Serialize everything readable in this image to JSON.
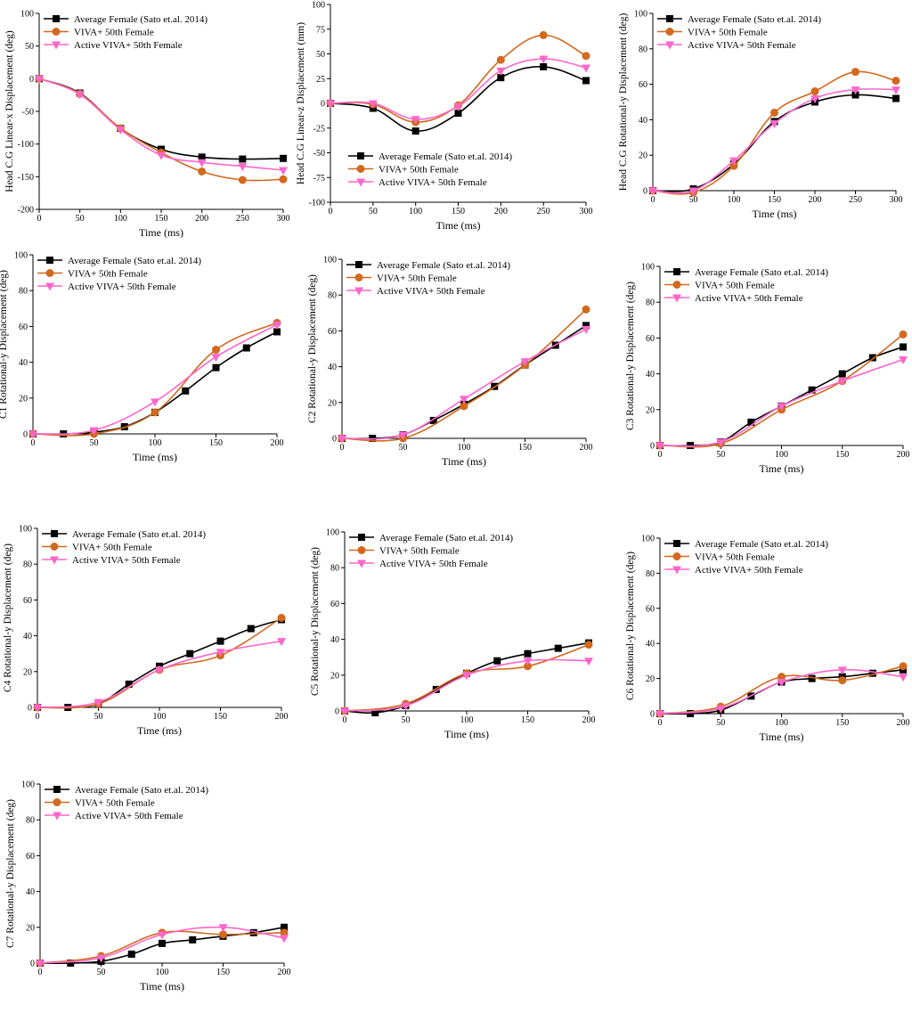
{
  "colors": {
    "average": "#000000",
    "viva": "#d2691e",
    "active": "#ff66cc"
  },
  "legend_labels": [
    "Average Female (Sato et.al. 2014)",
    "VIVA+ 50th Female",
    "Active VIVA+ 50th Female"
  ],
  "chart_data": [
    {
      "id": "head-x",
      "type": "line",
      "xlabel": "Time (ms)",
      "ylabel": "Head C.G Linear-x Displacement (deg)",
      "xlim": [
        0,
        300
      ],
      "ylim": [
        -200,
        100
      ],
      "xticks": [
        0,
        50,
        100,
        150,
        200,
        250,
        300
      ],
      "yticks": [
        -200,
        -150,
        -100,
        -50,
        0,
        50,
        100
      ],
      "legend_position": "top-left",
      "series": [
        {
          "name": "Average Female (Sato et.al. 2014)",
          "key": "average",
          "marker": "square",
          "x": [
            0,
            50,
            100,
            150,
            200,
            250,
            300
          ],
          "y": [
            0,
            -22,
            -76,
            -108,
            -120,
            -123,
            -122
          ]
        },
        {
          "name": "VIVA+ 50th Female",
          "key": "viva",
          "marker": "circle",
          "x": [
            0,
            50,
            100,
            150,
            200,
            250,
            300
          ],
          "y": [
            0,
            -23,
            -76,
            -113,
            -142,
            -155,
            -154
          ]
        },
        {
          "name": "Active VIVA+ 50th Female",
          "key": "active",
          "marker": "triangle-down",
          "x": [
            0,
            50,
            100,
            150,
            200,
            250,
            300
          ],
          "y": [
            0,
            -24,
            -78,
            -117,
            -128,
            -134,
            -140
          ]
        }
      ]
    },
    {
      "id": "head-z",
      "type": "line",
      "xlabel": "Time (ms)",
      "ylabel": "Head C.G Linear-z Displacement (mm)",
      "xlim": [
        0,
        300
      ],
      "ylim": [
        -100,
        100
      ],
      "xticks": [
        0,
        50,
        100,
        150,
        200,
        250,
        300
      ],
      "yticks": [
        -100,
        -75,
        -50,
        -25,
        0,
        25,
        50,
        75,
        100
      ],
      "legend_position": "bottom-left",
      "series": [
        {
          "name": "Average Female (Sato et.al. 2014)",
          "key": "average",
          "marker": "square",
          "x": [
            0,
            50,
            100,
            150,
            200,
            250,
            300
          ],
          "y": [
            0,
            -5,
            -28,
            -10,
            26,
            37,
            23
          ]
        },
        {
          "name": "VIVA+ 50th Female",
          "key": "viva",
          "marker": "circle",
          "x": [
            0,
            50,
            100,
            150,
            200,
            250,
            300
          ],
          "y": [
            0,
            -1,
            -19,
            -2,
            44,
            69,
            48
          ]
        },
        {
          "name": "Active VIVA+ 50th Female",
          "key": "active",
          "marker": "triangle-down",
          "x": [
            0,
            50,
            100,
            150,
            200,
            250,
            300
          ],
          "y": [
            0,
            0,
            -16,
            -3,
            33,
            45,
            36
          ]
        }
      ]
    },
    {
      "id": "head-ry",
      "type": "line",
      "xlabel": "Time (ms)",
      "ylabel": "Head C.G Rotational-y Displacement (deg)",
      "xlim": [
        0,
        300
      ],
      "ylim": [
        0,
        100
      ],
      "xticks": [
        0,
        50,
        100,
        150,
        200,
        250,
        300
      ],
      "yticks": [
        0,
        20,
        40,
        60,
        80,
        100
      ],
      "legend_position": "top-left",
      "series": [
        {
          "name": "Average Female (Sato et.al. 2014)",
          "key": "average",
          "marker": "square",
          "x": [
            0,
            50,
            100,
            150,
            200,
            250,
            300
          ],
          "y": [
            0,
            1,
            15,
            39,
            50,
            54,
            52
          ]
        },
        {
          "name": "VIVA+ 50th Female",
          "key": "viva",
          "marker": "circle",
          "x": [
            0,
            50,
            100,
            150,
            200,
            250,
            300
          ],
          "y": [
            0,
            -1,
            14,
            44,
            56,
            67,
            62
          ]
        },
        {
          "name": "Active VIVA+ 50th Female",
          "key": "active",
          "marker": "triangle-down",
          "x": [
            0,
            50,
            100,
            150,
            200,
            250,
            300
          ],
          "y": [
            0,
            0,
            17,
            38,
            52,
            57,
            57
          ]
        }
      ]
    },
    {
      "id": "c1",
      "type": "line",
      "xlabel": "Time (ms)",
      "ylabel": "C1 Rotational-y Displacement (deg)",
      "xlim": [
        0,
        200
      ],
      "ylim": [
        0,
        100
      ],
      "xticks": [
        0,
        50,
        100,
        150,
        200
      ],
      "yticks": [
        0,
        20,
        40,
        60,
        80,
        100
      ],
      "legend_position": "top-left",
      "series": [
        {
          "name": "Average Female (Sato et.al. 2014)",
          "key": "average",
          "marker": "square",
          "x": [
            0,
            25,
            50,
            75,
            100,
            125,
            150,
            175,
            200
          ],
          "y": [
            0,
            0,
            1,
            4,
            12,
            24,
            37,
            48,
            57
          ]
        },
        {
          "name": "VIVA+ 50th Female",
          "key": "viva",
          "marker": "circle",
          "x": [
            0,
            50,
            100,
            150,
            200
          ],
          "y": [
            0,
            0,
            12,
            47,
            62
          ]
        },
        {
          "name": "Active VIVA+ 50th Female",
          "key": "active",
          "marker": "triangle-down",
          "x": [
            0,
            50,
            100,
            150,
            200
          ],
          "y": [
            0,
            2,
            18,
            43,
            61
          ]
        }
      ]
    },
    {
      "id": "c2",
      "type": "line",
      "xlabel": "Time (ms)",
      "ylabel": "C2 Rotational-y Displacement (deg)",
      "xlim": [
        0,
        200
      ],
      "ylim": [
        0,
        100
      ],
      "xticks": [
        0,
        50,
        100,
        150,
        200
      ],
      "yticks": [
        0,
        20,
        40,
        60,
        80,
        100
      ],
      "legend_position": "top-left",
      "series": [
        {
          "name": "Average Female (Sato et.al. 2014)",
          "key": "average",
          "marker": "square",
          "x": [
            0,
            25,
            50,
            75,
            100,
            125,
            150,
            175,
            200
          ],
          "y": [
            0,
            0,
            2,
            10,
            19,
            29,
            41,
            52,
            63
          ]
        },
        {
          "name": "VIVA+ 50th Female",
          "key": "viva",
          "marker": "circle",
          "x": [
            0,
            50,
            100,
            150,
            200
          ],
          "y": [
            0,
            0,
            18,
            41,
            72
          ]
        },
        {
          "name": "Active VIVA+ 50th Female",
          "key": "active",
          "marker": "triangle-down",
          "x": [
            0,
            50,
            100,
            150,
            200
          ],
          "y": [
            0,
            2,
            22,
            43,
            61
          ]
        }
      ]
    },
    {
      "id": "c3",
      "type": "line",
      "xlabel": "Time (ms)",
      "ylabel": "C3 Rotational-y Displacement (deg)",
      "xlim": [
        0,
        200
      ],
      "ylim": [
        0,
        100
      ],
      "xticks": [
        0,
        50,
        100,
        150,
        200
      ],
      "yticks": [
        0,
        20,
        40,
        60,
        80,
        100
      ],
      "legend_position": "top-left",
      "series": [
        {
          "name": "Average Female (Sato et.al. 2014)",
          "key": "average",
          "marker": "square",
          "x": [
            0,
            25,
            50,
            75,
            100,
            125,
            150,
            175,
            200
          ],
          "y": [
            0,
            0,
            2,
            13,
            22,
            31,
            40,
            49,
            55
          ]
        },
        {
          "name": "VIVA+ 50th Female",
          "key": "viva",
          "marker": "circle",
          "x": [
            0,
            50,
            100,
            150,
            200
          ],
          "y": [
            0,
            1,
            20,
            36,
            62
          ]
        },
        {
          "name": "Active VIVA+ 50th Female",
          "key": "active",
          "marker": "triangle-down",
          "x": [
            0,
            50,
            100,
            150,
            200
          ],
          "y": [
            0,
            2,
            22,
            36,
            48
          ]
        }
      ]
    },
    {
      "id": "c4",
      "type": "line",
      "xlabel": "Time (ms)",
      "ylabel": "C4 Rotational-y Displacement (deg)",
      "xlim": [
        0,
        200
      ],
      "ylim": [
        0,
        100
      ],
      "xticks": [
        0,
        50,
        100,
        150,
        200
      ],
      "yticks": [
        0,
        20,
        40,
        60,
        80,
        100
      ],
      "legend_position": "top-left",
      "series": [
        {
          "name": "Average Female (Sato et.al. 2014)",
          "key": "average",
          "marker": "square",
          "x": [
            0,
            25,
            50,
            75,
            100,
            125,
            150,
            175,
            200
          ],
          "y": [
            0,
            0,
            2,
            13,
            23,
            30,
            37,
            44,
            49
          ]
        },
        {
          "name": "VIVA+ 50th Female",
          "key": "viva",
          "marker": "circle",
          "x": [
            0,
            50,
            100,
            150,
            200
          ],
          "y": [
            0,
            2,
            21,
            29,
            50
          ]
        },
        {
          "name": "Active VIVA+ 50th Female",
          "key": "active",
          "marker": "triangle-down",
          "x": [
            0,
            50,
            100,
            150,
            200
          ],
          "y": [
            0,
            3,
            21,
            31,
            37
          ]
        }
      ]
    },
    {
      "id": "c5",
      "type": "line",
      "xlabel": "Time (ms)",
      "ylabel": "C5 Rotational-y Displacement (deg)",
      "xlim": [
        0,
        200
      ],
      "ylim": [
        0,
        100
      ],
      "xticks": [
        0,
        50,
        100,
        150,
        200
      ],
      "yticks": [
        0,
        20,
        40,
        60,
        80,
        100
      ],
      "legend_position": "top-left",
      "series": [
        {
          "name": "Average Female (Sato et.al. 2014)",
          "key": "average",
          "marker": "square",
          "x": [
            0,
            25,
            50,
            75,
            100,
            125,
            150,
            175,
            200
          ],
          "y": [
            0,
            -1,
            3,
            12,
            21,
            28,
            32,
            35,
            38
          ]
        },
        {
          "name": "VIVA+ 50th Female",
          "key": "viva",
          "marker": "circle",
          "x": [
            0,
            50,
            100,
            150,
            200
          ],
          "y": [
            0,
            4,
            21,
            25,
            37
          ]
        },
        {
          "name": "Active VIVA+ 50th Female",
          "key": "active",
          "marker": "triangle-down",
          "x": [
            0,
            50,
            100,
            150,
            200
          ],
          "y": [
            0,
            3,
            20,
            28,
            28
          ]
        }
      ]
    },
    {
      "id": "c6",
      "type": "line",
      "xlabel": "Time (ms)",
      "ylabel": "C6 Rotational-y Displacement (deg)",
      "xlim": [
        0,
        200
      ],
      "ylim": [
        0,
        100
      ],
      "xticks": [
        0,
        50,
        100,
        150,
        200
      ],
      "yticks": [
        0,
        20,
        40,
        60,
        80,
        100
      ],
      "legend_position": "top-left",
      "series": [
        {
          "name": "Average Female (Sato et.al. 2014)",
          "key": "average",
          "marker": "square",
          "x": [
            0,
            25,
            50,
            75,
            100,
            125,
            150,
            175,
            200
          ],
          "y": [
            0,
            0,
            2,
            10,
            18,
            20,
            21,
            23,
            25
          ]
        },
        {
          "name": "VIVA+ 50th Female",
          "key": "viva",
          "marker": "circle",
          "x": [
            0,
            50,
            100,
            150,
            200
          ],
          "y": [
            0,
            4,
            21,
            19,
            27
          ]
        },
        {
          "name": "Active VIVA+ 50th Female",
          "key": "active",
          "marker": "triangle-down",
          "x": [
            0,
            50,
            100,
            150,
            200
          ],
          "y": [
            0,
            3,
            18,
            25,
            21
          ]
        }
      ]
    },
    {
      "id": "c7",
      "type": "line",
      "xlabel": "Time (ms)",
      "ylabel": "C7 Rotational-y Displacement (deg)",
      "xlim": [
        0,
        200
      ],
      "ylim": [
        0,
        100
      ],
      "xticks": [
        0,
        50,
        100,
        150,
        200
      ],
      "yticks": [
        0,
        20,
        40,
        60,
        80,
        100
      ],
      "legend_position": "top-left",
      "series": [
        {
          "name": "Average Female (Sato et.al. 2014)",
          "key": "average",
          "marker": "square",
          "x": [
            0,
            25,
            50,
            75,
            100,
            125,
            150,
            175,
            200
          ],
          "y": [
            0,
            0,
            1,
            5,
            11,
            13,
            15,
            17,
            20
          ]
        },
        {
          "name": "VIVA+ 50th Female",
          "key": "viva",
          "marker": "circle",
          "x": [
            0,
            50,
            100,
            150,
            200
          ],
          "y": [
            0,
            4,
            17,
            16,
            17
          ]
        },
        {
          "name": "Active VIVA+ 50th Female",
          "key": "active",
          "marker": "triangle-down",
          "x": [
            0,
            50,
            100,
            150,
            200
          ],
          "y": [
            0,
            3,
            16,
            20,
            14
          ]
        }
      ]
    }
  ]
}
